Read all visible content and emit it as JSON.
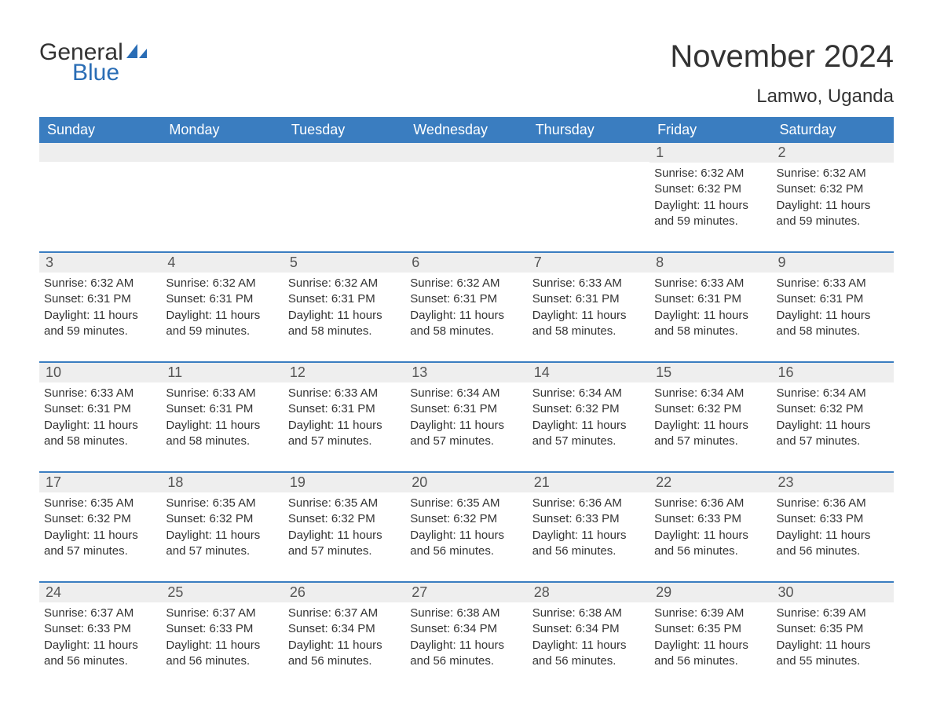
{
  "logo": {
    "text1": "General",
    "text2": "Blue"
  },
  "title": "November 2024",
  "location": "Lamwo, Uganda",
  "colors": {
    "header_bg": "#3a7dc0",
    "header_text": "#ffffff",
    "row_border": "#3a7dc0",
    "daynum_bg": "#eeeeee",
    "logo_blue": "#2a6db5",
    "body_text": "#333333"
  },
  "weekdays": [
    "Sunday",
    "Monday",
    "Tuesday",
    "Wednesday",
    "Thursday",
    "Friday",
    "Saturday"
  ],
  "weeks": [
    [
      {
        "day": "",
        "sunrise": "",
        "sunset": "",
        "daylight": ""
      },
      {
        "day": "",
        "sunrise": "",
        "sunset": "",
        "daylight": ""
      },
      {
        "day": "",
        "sunrise": "",
        "sunset": "",
        "daylight": ""
      },
      {
        "day": "",
        "sunrise": "",
        "sunset": "",
        "daylight": ""
      },
      {
        "day": "",
        "sunrise": "",
        "sunset": "",
        "daylight": ""
      },
      {
        "day": "1",
        "sunrise": "Sunrise: 6:32 AM",
        "sunset": "Sunset: 6:32 PM",
        "daylight": "Daylight: 11 hours and 59 minutes."
      },
      {
        "day": "2",
        "sunrise": "Sunrise: 6:32 AM",
        "sunset": "Sunset: 6:32 PM",
        "daylight": "Daylight: 11 hours and 59 minutes."
      }
    ],
    [
      {
        "day": "3",
        "sunrise": "Sunrise: 6:32 AM",
        "sunset": "Sunset: 6:31 PM",
        "daylight": "Daylight: 11 hours and 59 minutes."
      },
      {
        "day": "4",
        "sunrise": "Sunrise: 6:32 AM",
        "sunset": "Sunset: 6:31 PM",
        "daylight": "Daylight: 11 hours and 59 minutes."
      },
      {
        "day": "5",
        "sunrise": "Sunrise: 6:32 AM",
        "sunset": "Sunset: 6:31 PM",
        "daylight": "Daylight: 11 hours and 58 minutes."
      },
      {
        "day": "6",
        "sunrise": "Sunrise: 6:32 AM",
        "sunset": "Sunset: 6:31 PM",
        "daylight": "Daylight: 11 hours and 58 minutes."
      },
      {
        "day": "7",
        "sunrise": "Sunrise: 6:33 AM",
        "sunset": "Sunset: 6:31 PM",
        "daylight": "Daylight: 11 hours and 58 minutes."
      },
      {
        "day": "8",
        "sunrise": "Sunrise: 6:33 AM",
        "sunset": "Sunset: 6:31 PM",
        "daylight": "Daylight: 11 hours and 58 minutes."
      },
      {
        "day": "9",
        "sunrise": "Sunrise: 6:33 AM",
        "sunset": "Sunset: 6:31 PM",
        "daylight": "Daylight: 11 hours and 58 minutes."
      }
    ],
    [
      {
        "day": "10",
        "sunrise": "Sunrise: 6:33 AM",
        "sunset": "Sunset: 6:31 PM",
        "daylight": "Daylight: 11 hours and 58 minutes."
      },
      {
        "day": "11",
        "sunrise": "Sunrise: 6:33 AM",
        "sunset": "Sunset: 6:31 PM",
        "daylight": "Daylight: 11 hours and 58 minutes."
      },
      {
        "day": "12",
        "sunrise": "Sunrise: 6:33 AM",
        "sunset": "Sunset: 6:31 PM",
        "daylight": "Daylight: 11 hours and 57 minutes."
      },
      {
        "day": "13",
        "sunrise": "Sunrise: 6:34 AM",
        "sunset": "Sunset: 6:31 PM",
        "daylight": "Daylight: 11 hours and 57 minutes."
      },
      {
        "day": "14",
        "sunrise": "Sunrise: 6:34 AM",
        "sunset": "Sunset: 6:32 PM",
        "daylight": "Daylight: 11 hours and 57 minutes."
      },
      {
        "day": "15",
        "sunrise": "Sunrise: 6:34 AM",
        "sunset": "Sunset: 6:32 PM",
        "daylight": "Daylight: 11 hours and 57 minutes."
      },
      {
        "day": "16",
        "sunrise": "Sunrise: 6:34 AM",
        "sunset": "Sunset: 6:32 PM",
        "daylight": "Daylight: 11 hours and 57 minutes."
      }
    ],
    [
      {
        "day": "17",
        "sunrise": "Sunrise: 6:35 AM",
        "sunset": "Sunset: 6:32 PM",
        "daylight": "Daylight: 11 hours and 57 minutes."
      },
      {
        "day": "18",
        "sunrise": "Sunrise: 6:35 AM",
        "sunset": "Sunset: 6:32 PM",
        "daylight": "Daylight: 11 hours and 57 minutes."
      },
      {
        "day": "19",
        "sunrise": "Sunrise: 6:35 AM",
        "sunset": "Sunset: 6:32 PM",
        "daylight": "Daylight: 11 hours and 57 minutes."
      },
      {
        "day": "20",
        "sunrise": "Sunrise: 6:35 AM",
        "sunset": "Sunset: 6:32 PM",
        "daylight": "Daylight: 11 hours and 56 minutes."
      },
      {
        "day": "21",
        "sunrise": "Sunrise: 6:36 AM",
        "sunset": "Sunset: 6:33 PM",
        "daylight": "Daylight: 11 hours and 56 minutes."
      },
      {
        "day": "22",
        "sunrise": "Sunrise: 6:36 AM",
        "sunset": "Sunset: 6:33 PM",
        "daylight": "Daylight: 11 hours and 56 minutes."
      },
      {
        "day": "23",
        "sunrise": "Sunrise: 6:36 AM",
        "sunset": "Sunset: 6:33 PM",
        "daylight": "Daylight: 11 hours and 56 minutes."
      }
    ],
    [
      {
        "day": "24",
        "sunrise": "Sunrise: 6:37 AM",
        "sunset": "Sunset: 6:33 PM",
        "daylight": "Daylight: 11 hours and 56 minutes."
      },
      {
        "day": "25",
        "sunrise": "Sunrise: 6:37 AM",
        "sunset": "Sunset: 6:33 PM",
        "daylight": "Daylight: 11 hours and 56 minutes."
      },
      {
        "day": "26",
        "sunrise": "Sunrise: 6:37 AM",
        "sunset": "Sunset: 6:34 PM",
        "daylight": "Daylight: 11 hours and 56 minutes."
      },
      {
        "day": "27",
        "sunrise": "Sunrise: 6:38 AM",
        "sunset": "Sunset: 6:34 PM",
        "daylight": "Daylight: 11 hours and 56 minutes."
      },
      {
        "day": "28",
        "sunrise": "Sunrise: 6:38 AM",
        "sunset": "Sunset: 6:34 PM",
        "daylight": "Daylight: 11 hours and 56 minutes."
      },
      {
        "day": "29",
        "sunrise": "Sunrise: 6:39 AM",
        "sunset": "Sunset: 6:35 PM",
        "daylight": "Daylight: 11 hours and 56 minutes."
      },
      {
        "day": "30",
        "sunrise": "Sunrise: 6:39 AM",
        "sunset": "Sunset: 6:35 PM",
        "daylight": "Daylight: 11 hours and 55 minutes."
      }
    ]
  ]
}
